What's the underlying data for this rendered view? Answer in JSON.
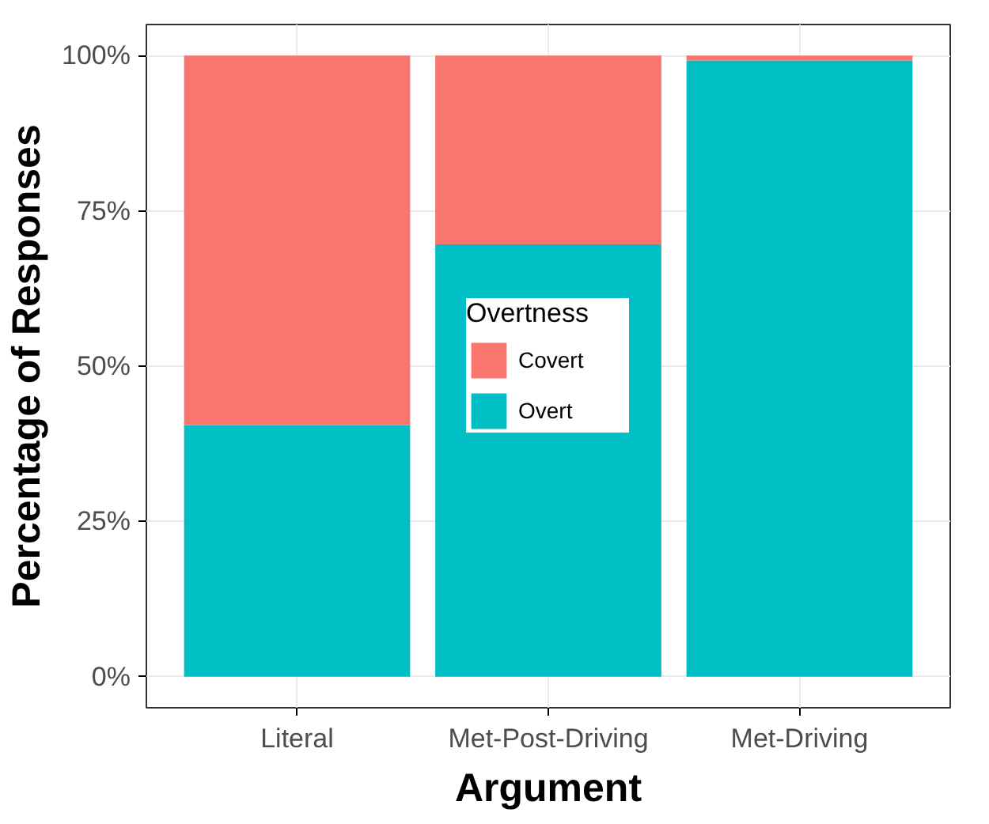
{
  "chart_data": {
    "type": "bar",
    "stacked": true,
    "xlabel": "Argument",
    "ylabel": "Percentage of Responses",
    "legend_title": "Overtness",
    "categories": [
      "Literal",
      "Met-Post-Driving",
      "Met-Driving"
    ],
    "series": [
      {
        "name": "Overt",
        "color": "#00bfc4",
        "values": [
          40.5,
          69.6,
          99.2
        ]
      },
      {
        "name": "Covert",
        "color": "#f8766d",
        "values": [
          59.5,
          30.4,
          0.8
        ]
      }
    ],
    "ylim": [
      -5,
      105
    ],
    "yticks": [
      {
        "value": 0,
        "label": "0%"
      },
      {
        "value": 25,
        "label": "25%"
      },
      {
        "value": 50,
        "label": "50%"
      },
      {
        "value": 75,
        "label": "75%"
      },
      {
        "value": 100,
        "label": "100%"
      }
    ],
    "grid": true,
    "legend": "center"
  }
}
